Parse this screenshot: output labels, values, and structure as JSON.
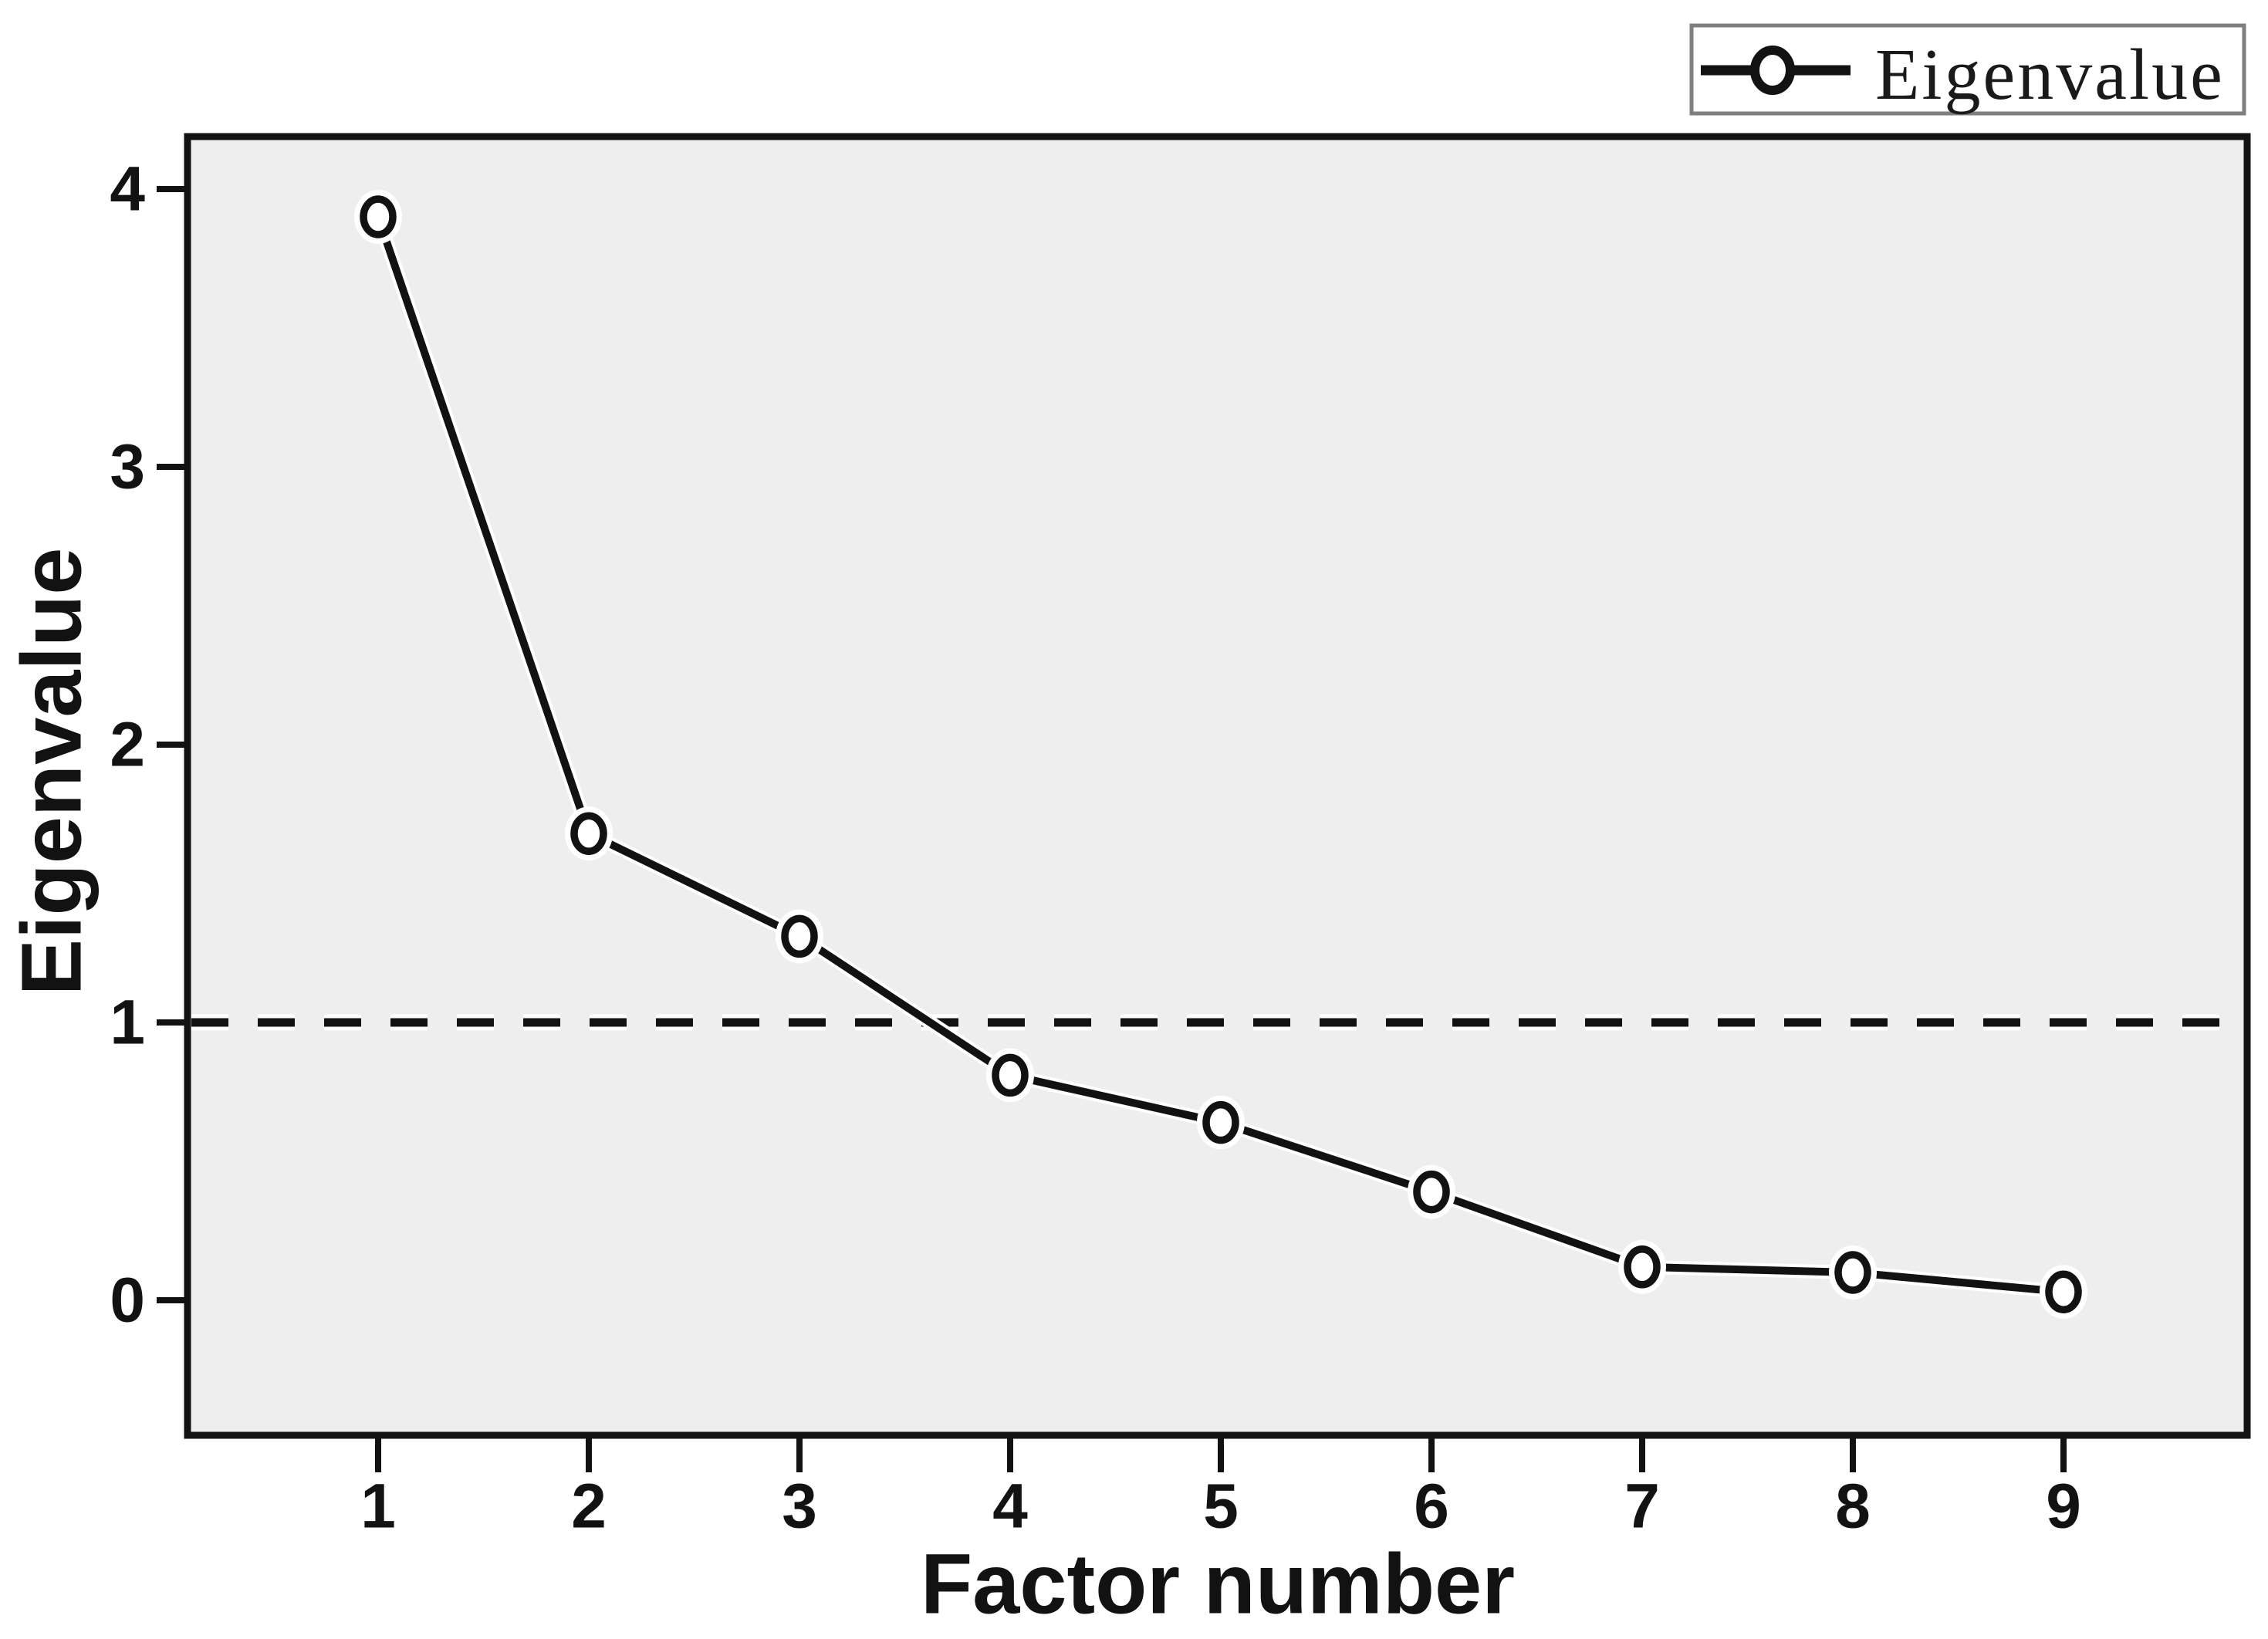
{
  "chart_data": {
    "type": "line",
    "title": "",
    "xlabel": "Factor number",
    "ylabel": "Eigenvalue",
    "legend_label": "Eigenvalue",
    "legend_position": "top-right",
    "x": [
      1,
      2,
      3,
      4,
      5,
      6,
      7,
      8,
      9
    ],
    "x_tick_labels": [
      "1",
      "2",
      "3",
      "4",
      "5",
      "6",
      "7",
      "8",
      "9"
    ],
    "y_ticks": [
      4,
      3,
      2,
      1,
      0
    ],
    "series": [
      {
        "name": "Eigenvalue",
        "values": [
          3.9,
          1.68,
          1.31,
          0.81,
          0.64,
          0.39,
          0.12,
          0.1,
          0.03
        ]
      }
    ],
    "reference_line": {
      "y": 1,
      "style": "dashed"
    },
    "ylim": [
      -0.49,
      4.19
    ],
    "xlim": [
      0.1,
      9.87
    ],
    "grid": false,
    "marker": "open-circle",
    "colors": {
      "ink": "#121212",
      "plot_bg": "#eeeeee",
      "page_bg": "#ffffff",
      "halo": "#ffffff",
      "legend_border": "#7f7f7f",
      "legend_bg": "#ffffff"
    }
  }
}
